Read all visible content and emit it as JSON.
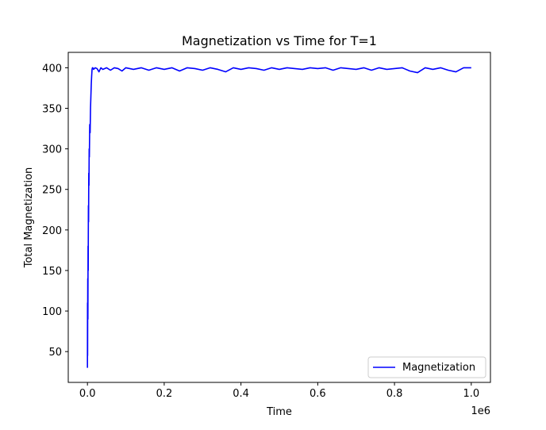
{
  "chart_data": {
    "type": "line",
    "title": "Magnetization vs Time for T=1",
    "xlabel": "Time",
    "ylabel": "Total Magnetization",
    "x_offset_label": "1e6",
    "xlim": [
      -50000,
      1050000
    ],
    "ylim": [
      12,
      419
    ],
    "x_ticks": [
      0,
      200000,
      400000,
      600000,
      800000,
      1000000
    ],
    "x_tick_labels": [
      "0.0",
      "0.2",
      "0.4",
      "0.6",
      "0.8",
      "1.0"
    ],
    "y_ticks": [
      50,
      100,
      150,
      200,
      250,
      300,
      350,
      400
    ],
    "y_tick_labels": [
      "50",
      "100",
      "150",
      "200",
      "250",
      "300",
      "350",
      "400"
    ],
    "grid": false,
    "legend_position": "lower-right",
    "series": [
      {
        "name": "Magnetization",
        "color": "#0000ff",
        "x": [
          0,
          200,
          400,
          800,
          1200,
          1600,
          2000,
          2500,
          3000,
          3500,
          4000,
          4500,
          5000,
          6000,
          7000,
          8000,
          9000,
          10000,
          11000,
          12000,
          13000,
          14000,
          16000,
          20000,
          25000,
          30000,
          35000,
          40000,
          50000,
          60000,
          70000,
          80000,
          90000,
          100000,
          120000,
          140000,
          160000,
          180000,
          200000,
          220000,
          240000,
          260000,
          280000,
          300000,
          320000,
          340000,
          360000,
          380000,
          400000,
          420000,
          440000,
          460000,
          480000,
          500000,
          520000,
          540000,
          560000,
          580000,
          600000,
          620000,
          640000,
          660000,
          680000,
          700000,
          720000,
          740000,
          760000,
          780000,
          800000,
          820000,
          840000,
          860000,
          880000,
          900000,
          920000,
          940000,
          960000,
          980000,
          1000000
        ],
        "values": [
          30,
          110,
          45,
          140,
          90,
          180,
          150,
          230,
          210,
          270,
          255,
          300,
          290,
          330,
          320,
          350,
          365,
          380,
          390,
          398,
          400,
          400,
          398,
          400,
          399,
          395,
          400,
          398,
          400,
          397,
          400,
          399,
          396,
          400,
          398,
          400,
          397,
          400,
          398,
          400,
          396,
          400,
          399,
          397,
          400,
          398,
          395,
          400,
          398,
          400,
          399,
          397,
          400,
          398,
          400,
          399,
          398,
          400,
          399,
          400,
          397,
          400,
          399,
          398,
          400,
          397,
          400,
          398,
          399,
          400,
          396,
          394,
          400,
          398,
          400,
          397,
          395,
          400,
          400
        ]
      }
    ]
  }
}
